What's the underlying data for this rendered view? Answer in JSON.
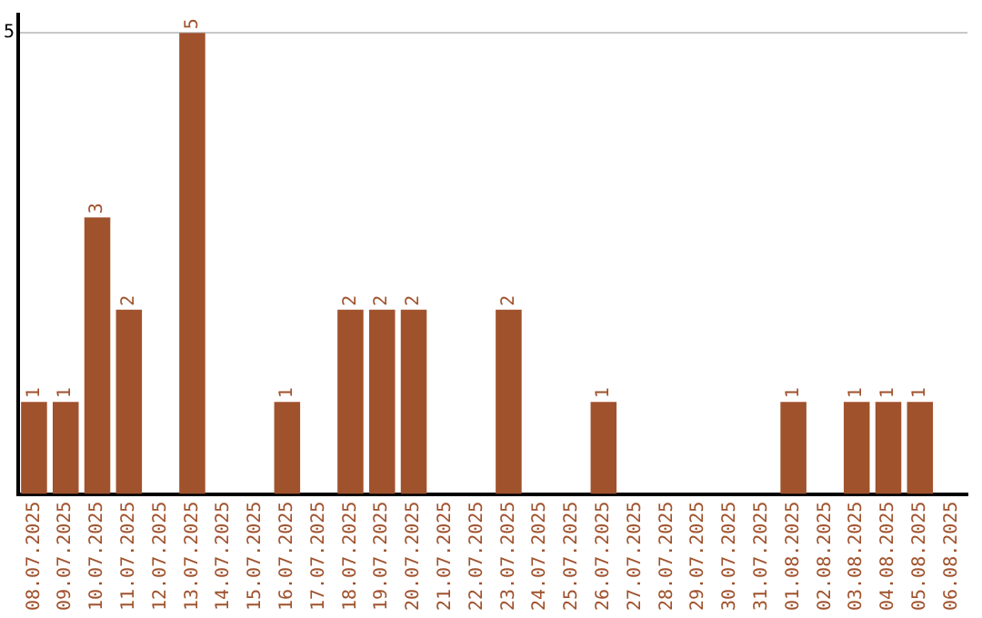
{
  "chart_data": {
    "type": "bar",
    "categories": [
      "08.07.2025",
      "09.07.2025",
      "10.07.2025",
      "11.07.2025",
      "12.07.2025",
      "13.07.2025",
      "14.07.2025",
      "15.07.2025",
      "16.07.2025",
      "17.07.2025",
      "18.07.2025",
      "19.07.2025",
      "20.07.2025",
      "21.07.2025",
      "22.07.2025",
      "23.07.2025",
      "24.07.2025",
      "25.07.2025",
      "26.07.2025",
      "27.07.2025",
      "28.07.2025",
      "29.07.2025",
      "30.07.2025",
      "31.07.2025",
      "01.08.2025",
      "02.08.2025",
      "03.08.2025",
      "04.08.2025",
      "05.08.2025",
      "06.08.2025"
    ],
    "values": [
      1,
      1,
      3,
      2,
      0,
      5,
      0,
      0,
      1,
      0,
      2,
      2,
      2,
      0,
      0,
      2,
      0,
      0,
      1,
      0,
      0,
      0,
      0,
      0,
      1,
      0,
      1,
      1,
      1,
      0
    ],
    "value_labels": [
      "1",
      "1",
      "3",
      "2",
      null,
      "5",
      null,
      null,
      "1",
      null,
      "2",
      "2",
      "2",
      null,
      null,
      "2",
      null,
      null,
      "1",
      null,
      null,
      null,
      null,
      null,
      "1",
      null,
      "1",
      "1",
      "1",
      null
    ],
    "color": "#a0522d",
    "ylim": [
      0,
      5.2
    ],
    "yticks": [
      5
    ],
    "grid": "y",
    "legend": false
  }
}
